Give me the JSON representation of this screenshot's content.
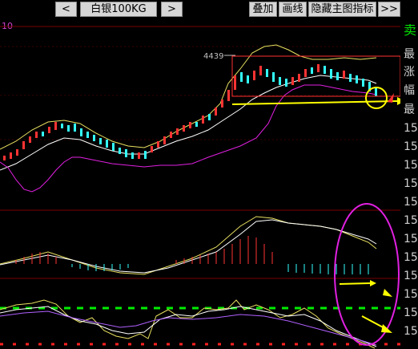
{
  "toolbar": {
    "prev_label": "<",
    "symbol": "白银100KG",
    "next_label": ">",
    "overlay_label": "叠加",
    "draw_label": "画线",
    "hide_indicator_label": "隐藏主图指标",
    "more_label": ">>"
  },
  "indicator_corner_value": "10",
  "price_label": "4439",
  "sidebar": {
    "sell": "卖",
    "labels": [
      "最",
      "涨",
      "幅",
      "最",
      "15",
      "15",
      "15",
      "15",
      "15",
      "15",
      "15",
      "15",
      "15",
      "15",
      "15",
      "15"
    ]
  },
  "colors": {
    "background": "#000000",
    "up_candle": "#ff3333",
    "down_candle": "#33ffff",
    "boll_upper": "#e8e060",
    "boll_mid": "#ffffff",
    "boll_lower": "#e020e0",
    "annotation_yellow": "#ffff00",
    "annotation_magenta": "#e020e0",
    "dashed_green": "#00ee00",
    "dashed_red": "#ff2020"
  }
}
